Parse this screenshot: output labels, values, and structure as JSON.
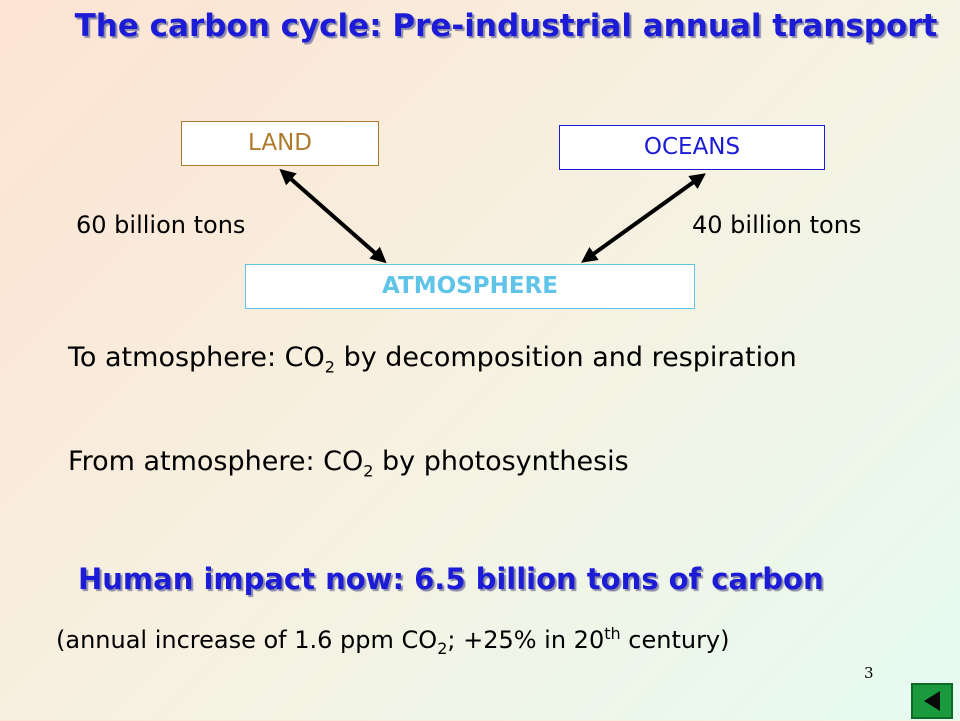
{
  "slide": {
    "title": "The carbon cycle: Pre-industrial annual transport",
    "page_number": "3"
  },
  "diagram": {
    "land": "LAND",
    "oceans": "OCEANS",
    "atmosphere": "ATMOSPHERE",
    "land_flux": "60 billion tons",
    "ocean_flux": "40 billion tons"
  },
  "text": {
    "to_atm_prefix": "To atmosphere: CO",
    "to_atm_sub": "2",
    "to_atm_suffix": " by decomposition and respiration",
    "from_atm_prefix": "From atmosphere: CO",
    "from_atm_sub": "2",
    "from_atm_suffix": " by photosynthesis",
    "impact": "Human impact now: 6.5 billion tons of carbon",
    "note_prefix": "(annual increase of 1.6 ppm CO",
    "note_sub": "2",
    "note_mid": "; +25% in 20",
    "note_sup": "th",
    "note_suffix": " century)"
  },
  "colors": {
    "title": "#1c1cd6",
    "land_border": "#b07a2c",
    "oceans_border": "#1c1cd6",
    "atmosphere_border": "#5fc4e8",
    "nav_button": "#1a9a3c"
  },
  "icons": {
    "nav": "back-arrow-icon"
  }
}
